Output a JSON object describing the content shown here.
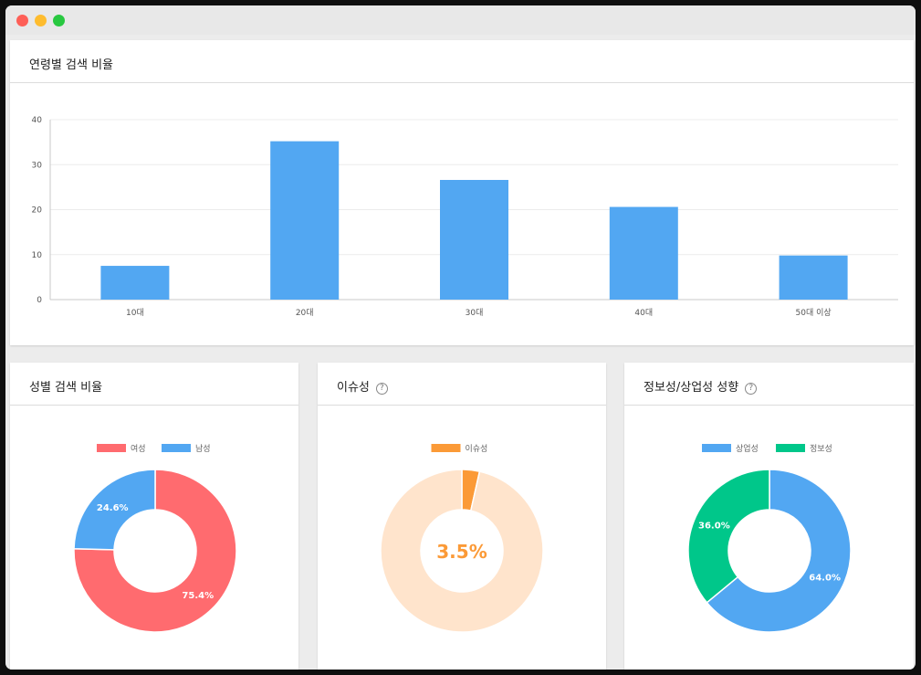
{
  "window": {
    "controls": [
      "close",
      "minimize",
      "maximize"
    ]
  },
  "age_card": {
    "title": "연령별 검색 비율"
  },
  "gender_card": {
    "title": "성별 검색 비율"
  },
  "issue_card": {
    "title": "이슈성",
    "help_icon": "question-circle-icon"
  },
  "info_card": {
    "title": "정보성/상업성 성향",
    "help_icon": "question-circle-icon"
  },
  "colors": {
    "bar": "#52a7f2",
    "female": "#ff6b6f",
    "male": "#52a7f2",
    "issue": "#fb9a37",
    "issue_bg": "#ffe4cc",
    "commercial": "#52a7f2",
    "informational": "#00c78a"
  },
  "chart_data": [
    {
      "type": "bar",
      "title": "연령별 검색 비율",
      "categories": [
        "10대",
        "20대",
        "30대",
        "40대",
        "50대 이상"
      ],
      "values": [
        7.5,
        35.2,
        26.6,
        20.6,
        9.8
      ],
      "ylim": [
        0,
        40
      ],
      "yticks": [
        0,
        10,
        20,
        30,
        40
      ],
      "grid": true
    },
    {
      "type": "pie",
      "title": "성별 검색 비율",
      "donut": true,
      "legend": "top",
      "labels": [
        "여성",
        "남성"
      ],
      "values": [
        75.4,
        24.6
      ],
      "value_labels": [
        "75.4%",
        "24.6%"
      ]
    },
    {
      "type": "pie",
      "title": "이슈성",
      "donut": true,
      "legend": "top",
      "labels": [
        "이슈성"
      ],
      "values": [
        3.5
      ],
      "center_label": "3.5%"
    },
    {
      "type": "pie",
      "title": "정보성/상업성 성향",
      "donut": true,
      "legend": "top",
      "labels": [
        "상업성",
        "정보성"
      ],
      "values": [
        64.0,
        36.0
      ],
      "value_labels": [
        "64.0%",
        "36.0%"
      ]
    }
  ]
}
